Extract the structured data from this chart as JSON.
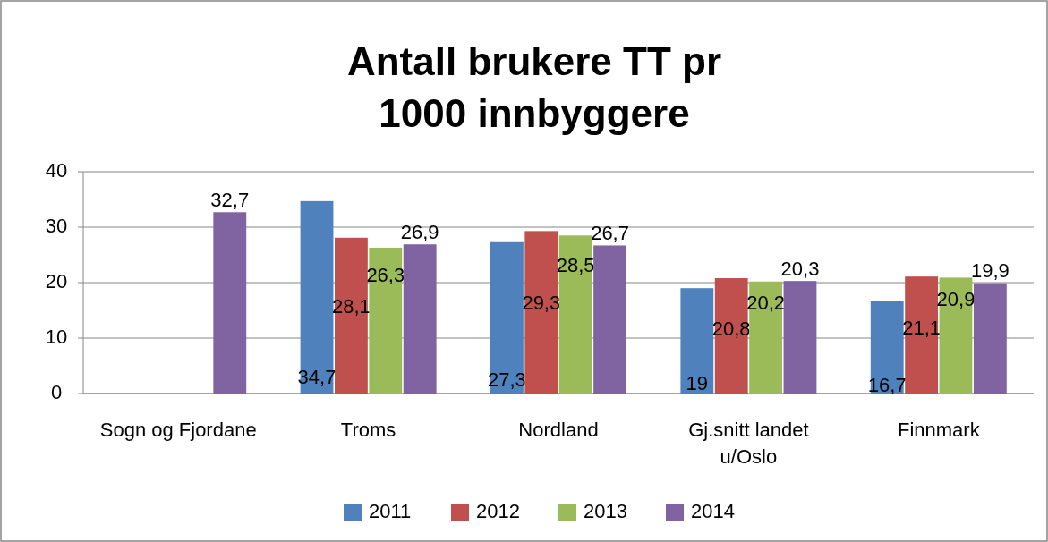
{
  "chart_data": {
    "type": "bar",
    "title": "Antall brukere TT pr 1000 innbyggere",
    "categories": [
      "Sogn og Fjordane",
      "Troms",
      "Nordland",
      "Gj.snitt landet u/Oslo",
      "Finnmark"
    ],
    "series": [
      {
        "name": "2011",
        "color": "#4f81bd",
        "values": [
          null,
          34.7,
          27.3,
          19,
          16.7
        ],
        "value_labels": [
          null,
          "34,7",
          "27,3",
          "19",
          "16,7"
        ]
      },
      {
        "name": "2012",
        "color": "#c0504d",
        "values": [
          null,
          28.1,
          29.3,
          20.8,
          21.1
        ],
        "value_labels": [
          null,
          "28,1",
          "29,3",
          "20,8",
          "21,1"
        ]
      },
      {
        "name": "2013",
        "color": "#9bbb59",
        "values": [
          null,
          26.3,
          28.5,
          20.2,
          20.9
        ],
        "value_labels": [
          null,
          "26,3",
          "28,5",
          "20,2",
          "20,9"
        ]
      },
      {
        "name": "2014",
        "color": "#8064a2",
        "values": [
          32.7,
          26.9,
          26.7,
          20.3,
          19.9
        ],
        "value_labels": [
          "32,7",
          "26,9",
          "26,7",
          "20,3",
          "19,9"
        ]
      }
    ],
    "ylim": [
      0,
      40
    ],
    "yticks": [
      0,
      10,
      20,
      30,
      40
    ],
    "grid": "y",
    "legend": "bottom"
  }
}
